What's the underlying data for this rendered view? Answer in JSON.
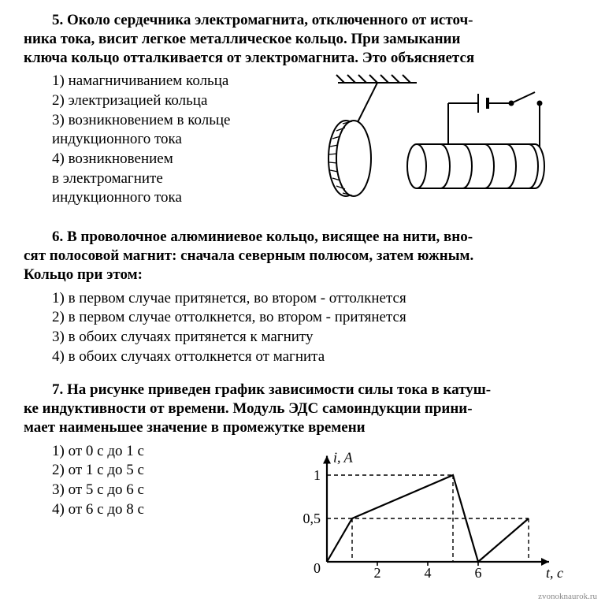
{
  "q5": {
    "number": "5.",
    "stem_line1": "Около сердечника электромагнита, отключенного от источ-",
    "stem_line2": "ника тока, висит легкое металлическое кольцо. При замыкании",
    "stem_line3": "ключа кольцо отталкивается от электромагнита. Это объясняется",
    "options": {
      "o1": "1) намагничиванием кольца",
      "o2": "2) электризацией кольца",
      "o3a": "3) возникновением в кольце",
      "o3b": "индукционного тока",
      "o4a": "4) возникновением",
      "o4b": "в электромагните",
      "o4c": "индукционного тока"
    },
    "figure": {
      "stroke": "#000000",
      "fill": "#ffffff",
      "stroke_width": 2
    }
  },
  "q6": {
    "number": "6.",
    "stem_line1": "В проволочное алюминиевое кольцо, висящее на нити, вно-",
    "stem_line2": "сят полосовой магнит: сначала  северным полюсом, затем южным.",
    "stem_line3": "Кольцо при этом:",
    "options": {
      "o1": "1) в первом случае притянется, во втором - оттолкнется",
      "o2": "2) в первом случае оттолкнется, во втором - притянется",
      "o3": "3) в обоих случаях притянется к магниту",
      "o4": "4) в обоих случаях оттолкнется  от магнита"
    }
  },
  "q7": {
    "number": "7.",
    "stem_line1": "На рисунке приведен график зависимости силы тока в катуш-",
    "stem_line2": "ке индуктивности от времени. Модуль ЭДС самоиндукции прини-",
    "stem_line3": "мает наименьшее значение в промежутке времени",
    "options": {
      "o1": "1) от 0 с до 1 с",
      "o2": "2) от 1 с до 5 с",
      "o3": "3) от 5 с до 6 с",
      "o4": "4) от 6 с до 8 с"
    },
    "chart": {
      "type": "line",
      "x_values": [
        0,
        1,
        5,
        6,
        8
      ],
      "y_values": [
        0,
        0.5,
        1,
        0,
        0.5
      ],
      "xlim": [
        0,
        8.5
      ],
      "ylim": [
        0,
        1.15
      ],
      "xticks": [
        2,
        4,
        6
      ],
      "xtick_labels": [
        "2",
        "4",
        "6"
      ],
      "yticks": [
        0.5,
        1
      ],
      "ytick_labels": [
        "0,5",
        "1"
      ],
      "origin_label": "0",
      "y_axis_label": "i, A",
      "x_axis_label": "t, c",
      "dash_x": [
        1,
        5,
        6,
        8
      ],
      "dash_y": [
        0.5,
        1
      ],
      "stroke": "#000000",
      "dash_stroke": "#000000",
      "line_width": 2.2,
      "axis_width": 2.2,
      "dash_pattern": "5,4",
      "font_size": 18,
      "font_style_axis": "italic",
      "background_color": "#ffffff"
    }
  },
  "watermark": "zvonoknaurok.ru"
}
